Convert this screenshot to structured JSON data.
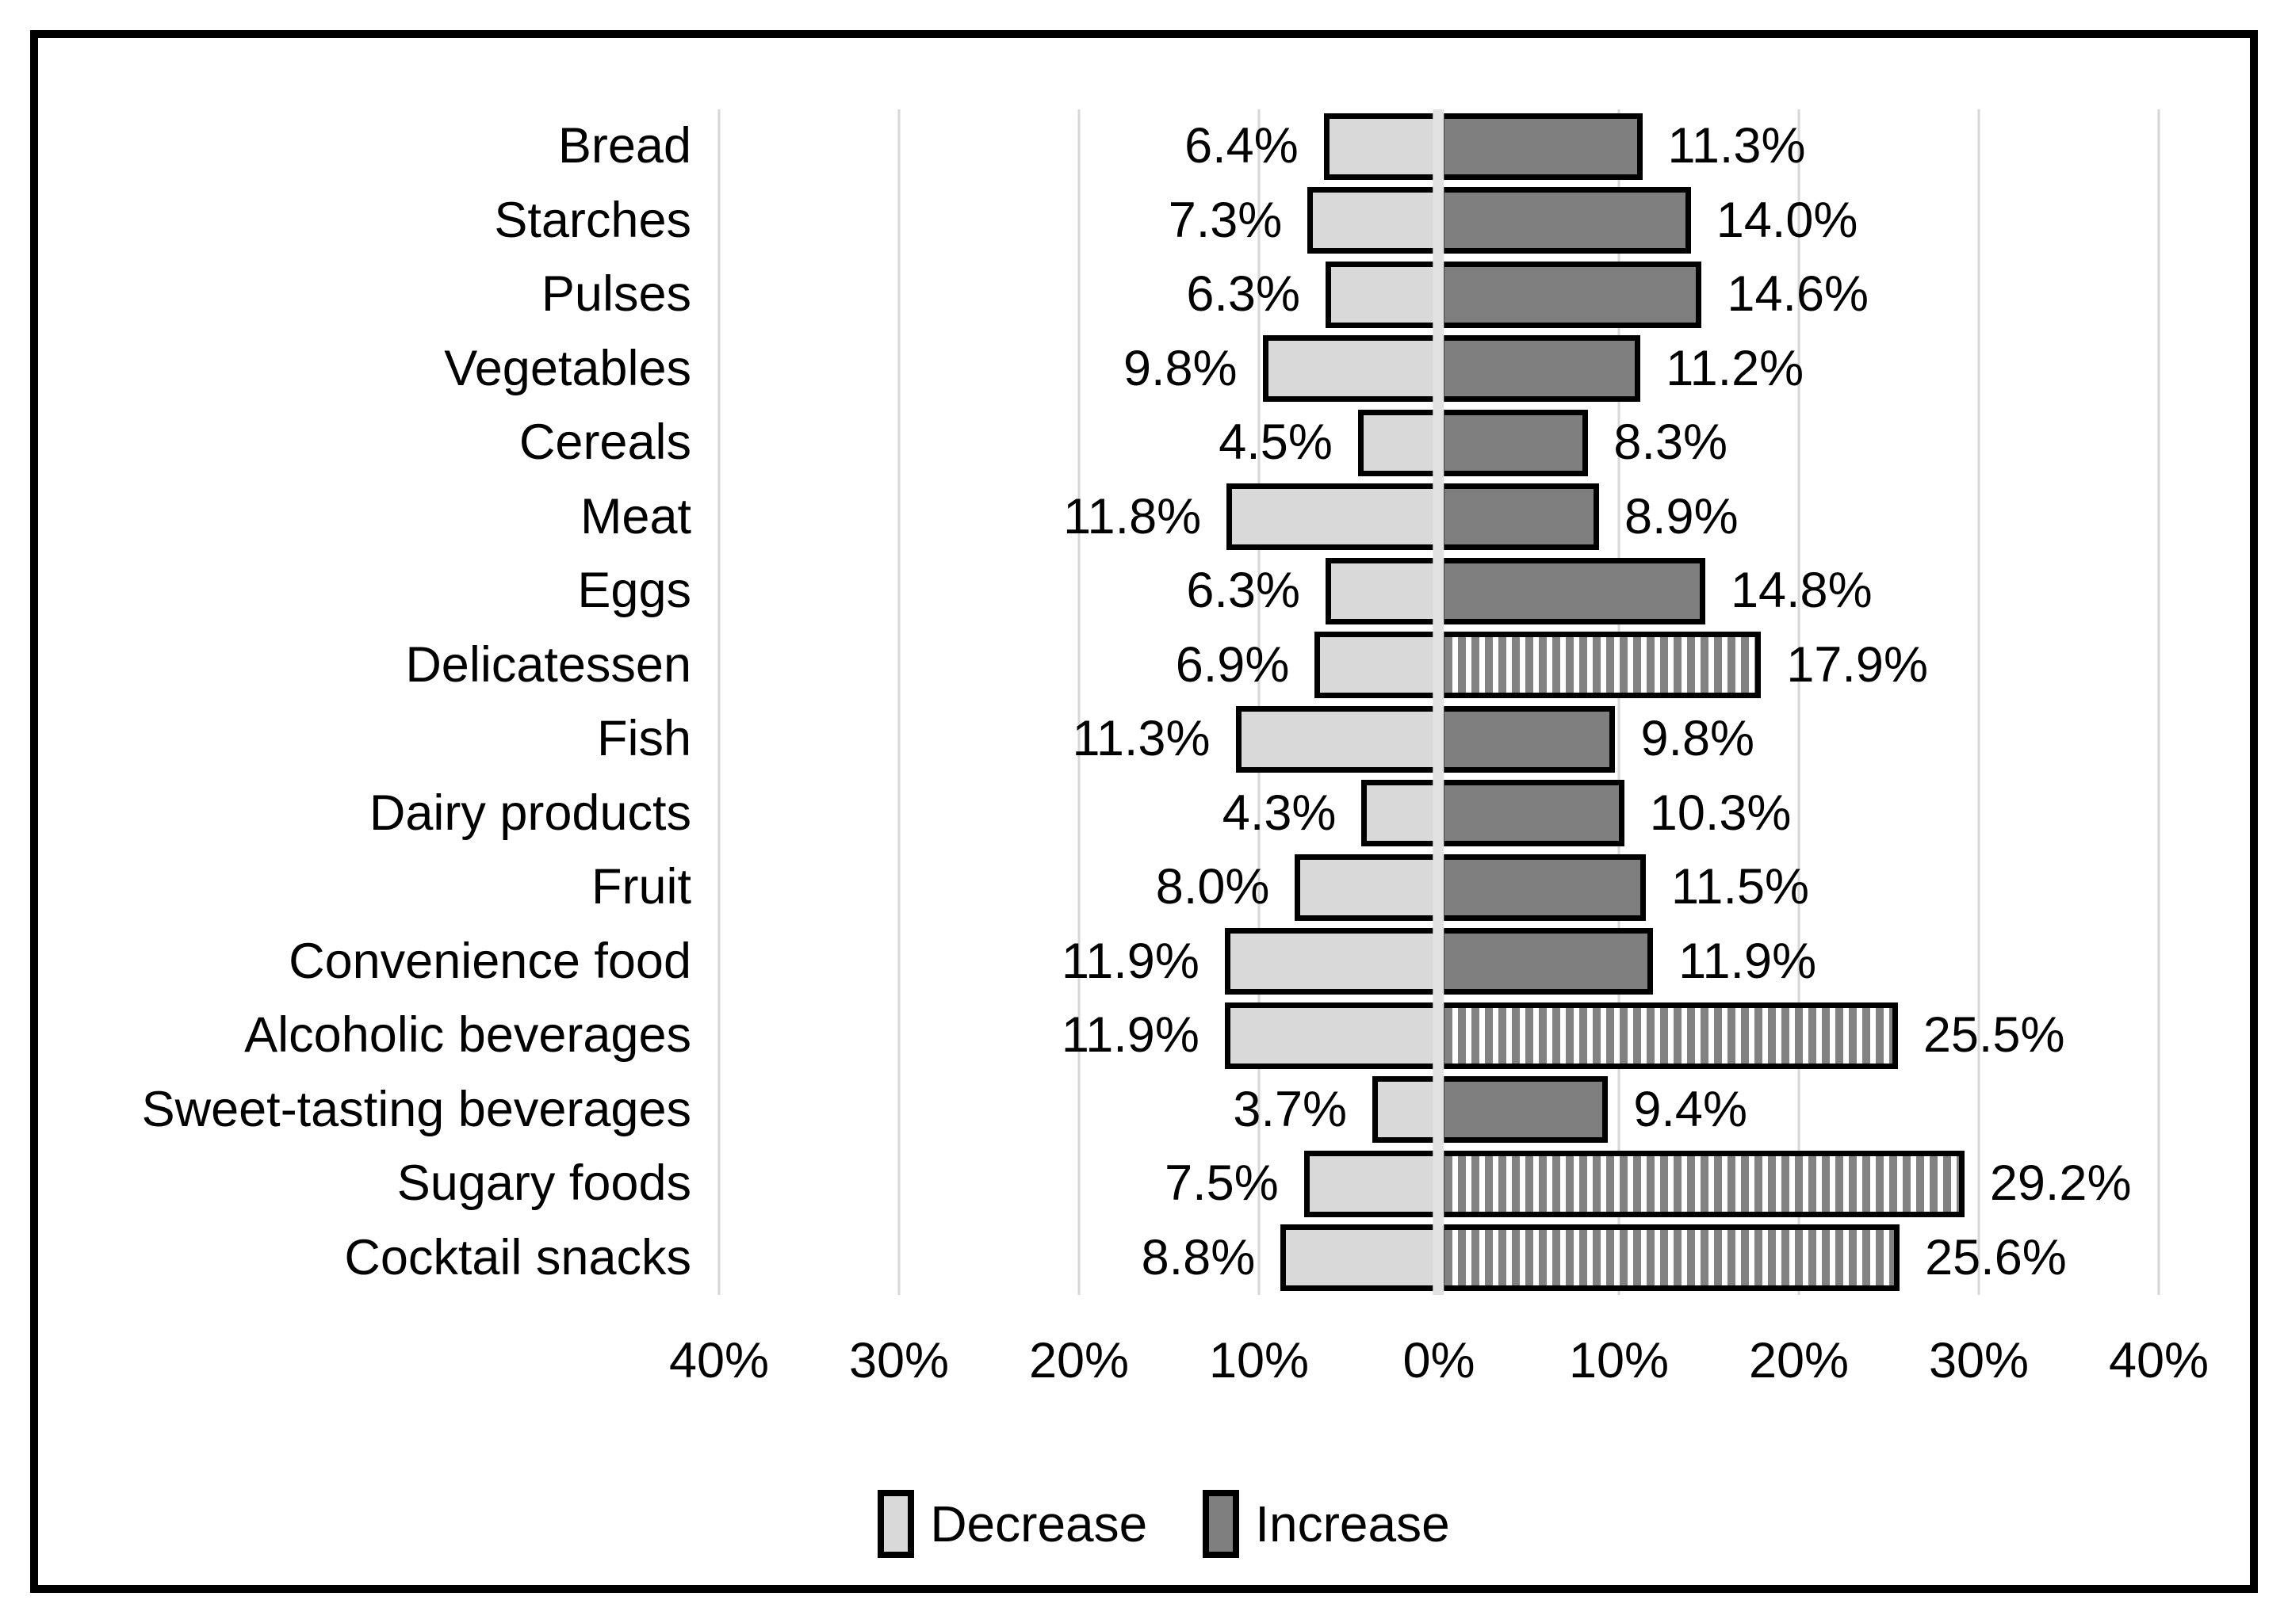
{
  "chart_data": {
    "type": "bar",
    "orientation": "horizontal-diverging",
    "title": "",
    "categories": [
      "Bread",
      "Starches",
      "Pulses",
      "Vegetables",
      "Cereals",
      "Meat",
      "Eggs",
      "Delicatessen",
      "Fish",
      "Dairy products",
      "Fruit",
      "Convenience food",
      "Alcoholic beverages",
      "Sweet-tasting beverages",
      "Sugary foods",
      "Cocktail snacks"
    ],
    "series": [
      {
        "name": "Decrease",
        "direction": "left",
        "color": "#d9d9d9",
        "values": [
          6.4,
          7.3,
          6.3,
          9.8,
          4.5,
          11.8,
          6.3,
          6.9,
          11.3,
          4.3,
          8.0,
          11.9,
          11.9,
          3.7,
          7.5,
          8.8
        ]
      },
      {
        "name": "Increase",
        "direction": "right",
        "color": "#7f7f7f",
        "values": [
          11.3,
          14.0,
          14.6,
          11.2,
          8.3,
          8.9,
          14.8,
          17.9,
          9.8,
          10.3,
          11.5,
          11.9,
          25.5,
          9.4,
          29.2,
          25.6
        ],
        "striped_indices": [
          7,
          12,
          14,
          15
        ]
      }
    ],
    "value_labels": {
      "decrease": [
        "6.4%",
        "7.3%",
        "6.3%",
        "9.8%",
        "4.5%",
        "11.8%",
        "6.3%",
        "6.9%",
        "11.3%",
        "4.3%",
        "8.0%",
        "11.9%",
        "11.9%",
        "3.7%",
        "7.5%",
        "8.8%"
      ],
      "increase": [
        "11.3%",
        "14.0%",
        "14.6%",
        "11.2%",
        "8.3%",
        "8.9%",
        "14.8%",
        "17.9%",
        "9.8%",
        "10.3%",
        "11.5%",
        "11.9%",
        "25.5%",
        "9.4%",
        "29.2%",
        "25.6%"
      ]
    },
    "x_axis": {
      "max": 40,
      "ticks": [
        "40%",
        "30%",
        "20%",
        "10%",
        "0%",
        "10%",
        "20%",
        "30%",
        "40%"
      ],
      "grid": true
    },
    "legend": {
      "position": "bottom-center",
      "items": [
        {
          "label": "Decrease",
          "color": "#d9d9d9"
        },
        {
          "label": "Increase",
          "color": "#7f7f7f"
        }
      ]
    },
    "colors": {
      "decrease_fill": "#d9d9d9",
      "increase_fill": "#7f7f7f",
      "bar_border": "#000000",
      "gridline": "#d7d7d7",
      "zero_axis_band": "#e2e2e2",
      "frame_border": "#000000"
    }
  }
}
